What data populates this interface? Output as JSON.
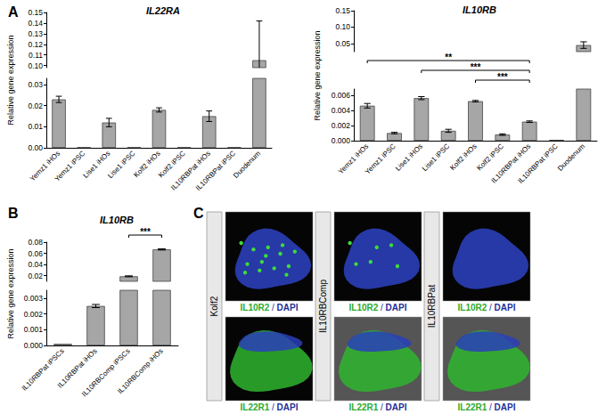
{
  "chart_data": [
    {
      "type": "bar",
      "panel": "A",
      "title": "IL22RA",
      "y_label": "Relative gene expression",
      "categories": [
        "Yemz1 iHOs",
        "Yemz1 iPSC",
        "Lise1 iHOs",
        "Lise1 iPSC",
        "Kolf2 iHOs",
        "Kolf2 iPSC",
        "IL10RBPat iHOs",
        "IL10RBPat iPSC",
        "Duodenum"
      ],
      "values": [
        0.023,
        0.0002,
        0.012,
        0.0002,
        0.018,
        0.0002,
        0.015,
        0.0002,
        0.105
      ],
      "errors": [
        0.0015,
        0,
        0.002,
        0,
        0.001,
        0,
        0.0025,
        0,
        0.037
      ],
      "color": "#a6a6a6",
      "ylim": [
        0,
        0.15
      ],
      "ybreak": [
        0.033,
        0.098
      ],
      "yticks": [
        {
          "value": 0,
          "label": "0.00"
        },
        0.01,
        0.02,
        0.03,
        {
          "value": 0.1,
          "label": "0.10"
        },
        0.11,
        0.12,
        0.13,
        0.14,
        0.15
      ]
    },
    {
      "type": "bar",
      "title": "IL10RB",
      "y_label": "Relative gene expression",
      "categories": [
        "Yemz1 iHOs",
        "Yemz1 iPSC",
        "Lise1 iHOs",
        "Lise1 iPSC",
        "Kolf2 iHOs",
        "Kolf2 iPSC",
        "IL10RBPat iHOs",
        "IL10RBPat iPSC",
        "Duodenum"
      ],
      "values": [
        0.0046,
        0.001,
        0.0056,
        0.0013,
        0.0052,
        0.0008,
        0.0025,
        0.0001,
        0.045
      ],
      "errors": [
        0.0003,
        0.0001,
        0.0002,
        0.0002,
        0.0001,
        0.0001,
        0.0001,
        0,
        0.01
      ],
      "color": "#a6a6a6",
      "ylim": [
        0,
        0.15
      ],
      "ybreak": [
        0.0068,
        0.025
      ],
      "yticks": [
        {
          "value": 0,
          "label": "0.000"
        },
        0.002,
        0.004,
        0.006,
        0.05,
        {
          "value": 0.1,
          "label": "0.10"
        },
        0.15
      ],
      "significance": [
        {
          "from": "Yemz1 iHOs",
          "to": "IL10RBPat iHOs",
          "label": "**"
        },
        {
          "from": "Lise1 iHOs",
          "to": "IL10RBPat iHOs",
          "label": "***"
        },
        {
          "from": "Kolf2 iHOs",
          "to": "IL10RBPat iHOs",
          "label": "***"
        }
      ]
    },
    {
      "type": "bar",
      "panel": "B",
      "title": "IL10RB",
      "y_label": "Relative gene expression",
      "categories": [
        "IL10RBPat iPSCs",
        "IL10RBPat iHOs",
        "IL10RBComp iPSCs",
        "IL10RBComp iHOs"
      ],
      "values": [
        0.0001,
        0.0025,
        0.019,
        0.067
      ],
      "errors": [
        0,
        0.0001,
        0.0008,
        0.001
      ],
      "color": "#a6a6a6",
      "ylim": [
        0,
        0.08
      ],
      "ybreak": [
        0.0035,
        0.01
      ],
      "yticks": [
        {
          "value": 0,
          "label": "0.000"
        },
        0.001,
        0.002,
        0.003,
        0.02,
        0.04,
        0.06,
        0.08
      ],
      "significance": [
        {
          "from": "IL10RBComp iPSCs",
          "to": "IL10RBComp iHOs",
          "label": "***"
        }
      ]
    }
  ],
  "images": {
    "panel": "C",
    "columns": [
      {
        "label": "Kolf2",
        "rows": [
          {
            "caption": "IL10R2 / DAPI"
          },
          {
            "caption": "IL22R1 / DAPI"
          }
        ]
      },
      {
        "label": "IL10RBComp",
        "rows": [
          {
            "caption": "IL10R2 / DAPI"
          },
          {
            "caption": "IL22R1 / DAPI"
          }
        ]
      },
      {
        "label": "IL10RBPat",
        "rows": [
          {
            "caption": "IL10R2 / DAPI"
          },
          {
            "caption": "IL22R1 / DAPI"
          }
        ]
      }
    ]
  }
}
